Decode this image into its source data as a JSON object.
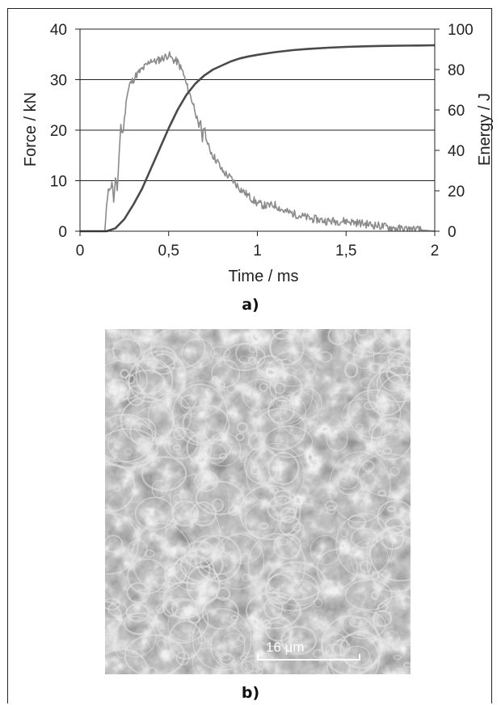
{
  "chart_data": {
    "type": "line",
    "xlabel": "Time / ms",
    "ylabel_left": "Force / kN",
    "ylabel_right": "Energy / J",
    "xlim": [
      0,
      2
    ],
    "ylim_left": [
      0,
      40
    ],
    "ylim_right": [
      0,
      100
    ],
    "x_ticks": [
      "0",
      "0,5",
      "1",
      "1,5",
      "2"
    ],
    "y_ticks_left": [
      "0",
      "10",
      "20",
      "30",
      "40"
    ],
    "y_ticks_right": [
      "0",
      "20",
      "40",
      "60",
      "80",
      "100"
    ],
    "grid": true,
    "series": [
      {
        "axis": "left",
        "color": "#8a8a8a",
        "x": [
          0,
          0.14,
          0.16,
          0.17,
          0.18,
          0.19,
          0.2,
          0.21,
          0.22,
          0.23,
          0.24,
          0.25,
          0.26,
          0.28,
          0.3,
          0.32,
          0.35,
          0.38,
          0.4,
          0.42,
          0.45,
          0.48,
          0.5,
          0.52,
          0.55,
          0.58,
          0.6,
          0.62,
          0.65,
          0.67,
          0.68,
          0.69,
          0.7,
          0.72,
          0.75,
          0.78,
          0.8,
          0.85,
          0.9,
          0.95,
          1.0,
          1.05,
          1.1,
          1.15,
          1.2,
          1.3,
          1.4,
          1.5,
          1.6,
          1.7,
          1.8,
          1.9,
          2.0
        ],
        "y": [
          0,
          0,
          9,
          8,
          10,
          6,
          10,
          8,
          15,
          21,
          19,
          22,
          26,
          29,
          30,
          31,
          32,
          33,
          34,
          33.5,
          34,
          34.5,
          35,
          34,
          33.5,
          31.5,
          29,
          27,
          24,
          20,
          22,
          18,
          21,
          17,
          15,
          13.5,
          12,
          10.5,
          8.5,
          7,
          5.5,
          5,
          5.2,
          4,
          3.5,
          2.5,
          2,
          2,
          1.5,
          1,
          0.5,
          0.3,
          0
        ]
      },
      {
        "axis": "right",
        "color": "#4a4a4a",
        "x": [
          0,
          0.15,
          0.2,
          0.25,
          0.3,
          0.35,
          0.4,
          0.45,
          0.5,
          0.55,
          0.6,
          0.65,
          0.7,
          0.75,
          0.8,
          0.85,
          0.9,
          0.95,
          1.0,
          1.1,
          1.2,
          1.3,
          1.4,
          1.5,
          1.6,
          1.7,
          1.8,
          1.9,
          2.0
        ],
        "y": [
          0,
          0,
          1.5,
          6,
          13,
          21,
          31,
          41,
          51,
          60,
          67.5,
          73,
          77,
          80,
          82,
          84,
          85.5,
          86.5,
          87.3,
          88.6,
          89.6,
          90.3,
          90.8,
          91.2,
          91.5,
          91.7,
          91.8,
          91.9,
          92
        ]
      }
    ]
  },
  "figure": {
    "caption_a": "a)",
    "caption_b": "b)",
    "scale_label": "16 µm"
  }
}
